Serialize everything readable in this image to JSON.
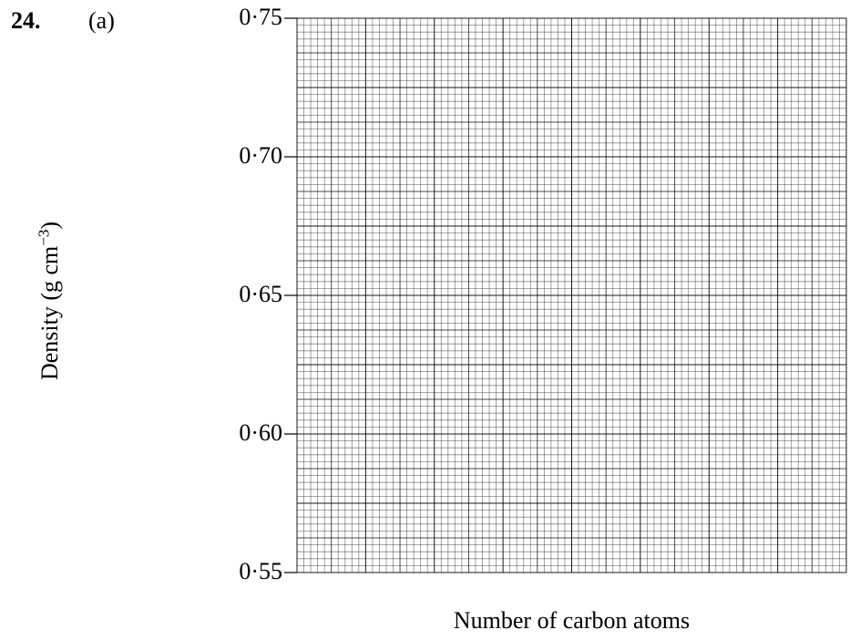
{
  "question": {
    "number": "24.",
    "part": "(a)"
  },
  "chart_data": {
    "type": "line",
    "title": "",
    "xlabel": "Number of carbon atoms",
    "ylabel_main": "Density (g cm",
    "ylabel_sup": "−3",
    "ylabel_close": ")",
    "ylim": [
      0.55,
      0.75
    ],
    "yticks": [
      {
        "value": 0.75,
        "label": "0·75"
      },
      {
        "value": 0.7,
        "label": "0·70"
      },
      {
        "value": 0.65,
        "label": "0·65"
      },
      {
        "value": 0.6,
        "label": "0·60"
      },
      {
        "value": 0.55,
        "label": "0·55"
      }
    ],
    "series": [],
    "grid": true,
    "grid_color": "#000000"
  }
}
